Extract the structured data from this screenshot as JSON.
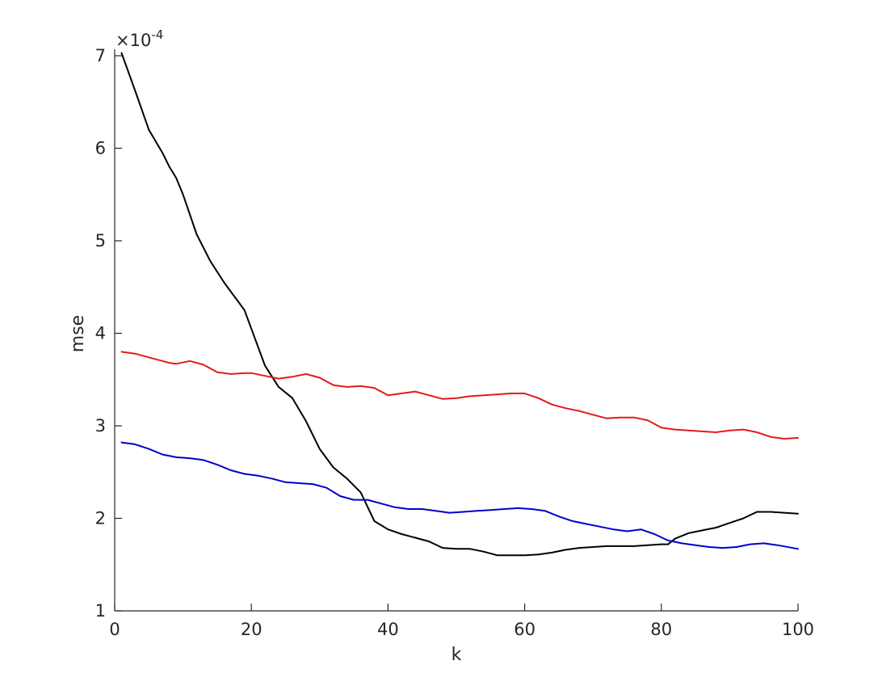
{
  "chart_data": {
    "type": "line",
    "title": "",
    "xlabel": "k",
    "ylabel": "mse",
    "y_exponent_label": "×10",
    "y_exponent_power": "-4",
    "xlim": [
      0,
      100
    ],
    "ylim": [
      1,
      7
    ],
    "xticks": [
      0,
      20,
      40,
      60,
      80,
      100
    ],
    "yticks": [
      1,
      2,
      3,
      4,
      5,
      6,
      7
    ],
    "grid": false,
    "legend": null,
    "series": [
      {
        "name": "black",
        "color": "#000000",
        "x": [
          1,
          3,
          5,
          7,
          8,
          9,
          10,
          12,
          14,
          16,
          17,
          18,
          19,
          20,
          22,
          24,
          26,
          28,
          30,
          32,
          34,
          36,
          38,
          40,
          42,
          44,
          46,
          48,
          50,
          52,
          54,
          56,
          58,
          60,
          62,
          64,
          66,
          68,
          70,
          72,
          74,
          76,
          78,
          80,
          81,
          82,
          84,
          86,
          88,
          90,
          92,
          94,
          96,
          98,
          100
        ],
        "y": [
          7.03,
          6.62,
          6.2,
          5.95,
          5.8,
          5.68,
          5.5,
          5.07,
          4.78,
          4.55,
          4.45,
          4.35,
          4.25,
          4.05,
          3.65,
          3.42,
          3.3,
          3.05,
          2.75,
          2.55,
          2.43,
          2.28,
          1.97,
          1.88,
          1.83,
          1.79,
          1.75,
          1.68,
          1.67,
          1.67,
          1.64,
          1.6,
          1.6,
          1.6,
          1.61,
          1.63,
          1.66,
          1.68,
          1.69,
          1.7,
          1.7,
          1.7,
          1.71,
          1.72,
          1.72,
          1.78,
          1.84,
          1.87,
          1.9,
          1.95,
          2.0,
          2.07,
          2.07,
          2.06,
          2.05
        ]
      },
      {
        "name": "red",
        "color": "#e41a1c",
        "x": [
          1,
          3,
          5,
          7,
          8,
          9,
          11,
          13,
          15,
          17,
          19,
          20,
          22,
          24,
          26,
          28,
          30,
          32,
          34,
          36,
          38,
          40,
          42,
          44,
          46,
          48,
          50,
          52,
          54,
          56,
          58,
          60,
          62,
          64,
          66,
          68,
          70,
          72,
          74,
          76,
          78,
          80,
          82,
          84,
          86,
          88,
          90,
          92,
          94,
          96,
          98,
          100
        ],
        "y": [
          3.8,
          3.78,
          3.74,
          3.7,
          3.68,
          3.67,
          3.7,
          3.66,
          3.58,
          3.56,
          3.57,
          3.57,
          3.54,
          3.51,
          3.53,
          3.56,
          3.52,
          3.44,
          3.42,
          3.43,
          3.41,
          3.33,
          3.35,
          3.37,
          3.33,
          3.29,
          3.3,
          3.32,
          3.33,
          3.34,
          3.35,
          3.35,
          3.3,
          3.23,
          3.19,
          3.16,
          3.12,
          3.08,
          3.09,
          3.09,
          3.06,
          2.98,
          2.96,
          2.95,
          2.94,
          2.93,
          2.95,
          2.96,
          2.93,
          2.88,
          2.86,
          2.87
        ]
      },
      {
        "name": "blue",
        "color": "#0000cc",
        "x": [
          1,
          3,
          5,
          7,
          9,
          11,
          13,
          15,
          17,
          19,
          21,
          23,
          25,
          27,
          29,
          31,
          33,
          35,
          37,
          39,
          41,
          43,
          45,
          47,
          49,
          51,
          53,
          55,
          57,
          59,
          61,
          63,
          65,
          67,
          69,
          71,
          73,
          75,
          77,
          79,
          81,
          83,
          85,
          87,
          89,
          91,
          93,
          95,
          97,
          100
        ],
        "y": [
          2.82,
          2.8,
          2.75,
          2.69,
          2.66,
          2.65,
          2.63,
          2.58,
          2.52,
          2.48,
          2.46,
          2.43,
          2.39,
          2.38,
          2.37,
          2.33,
          2.24,
          2.2,
          2.2,
          2.16,
          2.12,
          2.1,
          2.1,
          2.08,
          2.06,
          2.07,
          2.08,
          2.09,
          2.1,
          2.11,
          2.1,
          2.08,
          2.02,
          1.97,
          1.94,
          1.91,
          1.88,
          1.86,
          1.88,
          1.83,
          1.76,
          1.73,
          1.71,
          1.69,
          1.68,
          1.69,
          1.72,
          1.73,
          1.71,
          1.67
        ]
      }
    ]
  }
}
